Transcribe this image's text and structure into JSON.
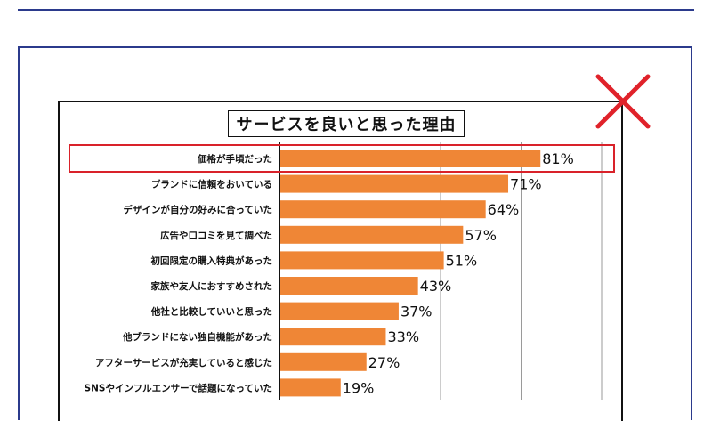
{
  "chart_data": {
    "type": "bar",
    "orientation": "horizontal",
    "title": "サービスを良いと思った理由",
    "categories": [
      "価格が手頃だった",
      "ブランドに信頼をおいている",
      "デザインが自分の好みに合っていた",
      "広告や口コミを見て調べた",
      "初回限定の購入特典があった",
      "家族や友人におすすめされた",
      "他社と比較していいと思った",
      "他ブランドにない独自機能があった",
      "アフターサービスが充実していると感じた",
      "SNSやインフルエンサーで話題になっていた"
    ],
    "values": [
      81,
      71,
      64,
      57,
      51,
      43,
      37,
      33,
      27,
      19
    ],
    "value_labels": [
      "81%",
      "71%",
      "64%",
      "57%",
      "51%",
      "43%",
      "37%",
      "33%",
      "27%",
      "19%"
    ],
    "xlim": [
      0,
      100
    ],
    "grid": true,
    "highlighted_category": "価格が手頃だった",
    "colors": {
      "bar": "#ef8636",
      "highlight_box": "#d9222a",
      "cross_mark": "#e0222a",
      "frame": "#2b3a8c"
    }
  }
}
